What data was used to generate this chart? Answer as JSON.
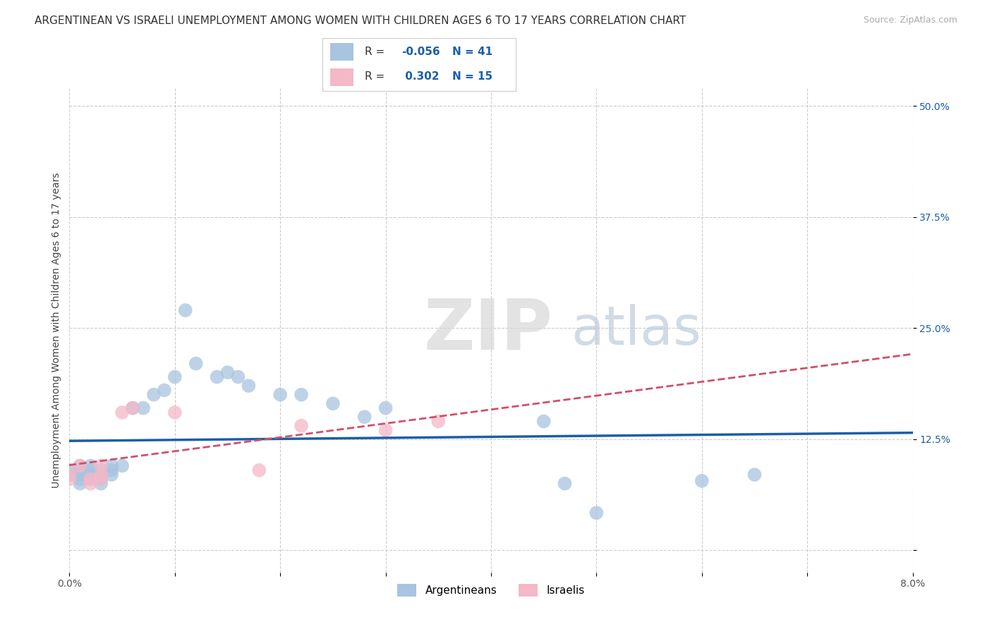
{
  "title": "ARGENTINEAN VS ISRAELI UNEMPLOYMENT AMONG WOMEN WITH CHILDREN AGES 6 TO 17 YEARS CORRELATION CHART",
  "source": "Source: ZipAtlas.com",
  "ylabel": "Unemployment Among Women with Children Ages 6 to 17 years",
  "xlim": [
    0.0,
    0.08
  ],
  "ylim": [
    -0.025,
    0.52
  ],
  "xtick_vals": [
    0.0,
    0.01,
    0.02,
    0.03,
    0.04,
    0.05,
    0.06,
    0.07,
    0.08
  ],
  "xticklabels": [
    "0.0%",
    "",
    "",
    "",
    "",
    "",
    "",
    "",
    "8.0%"
  ],
  "ytick_vals": [
    0.0,
    0.125,
    0.25,
    0.375,
    0.5
  ],
  "yticklabels": [
    "",
    "12.5%",
    "25.0%",
    "37.5%",
    "50.0%"
  ],
  "grid_color": "#cccccc",
  "bg_color": "#ffffff",
  "arg_color": "#a8c4e0",
  "arg_trend_color": "#1a5fa8",
  "isr_color": "#f4b8c8",
  "isr_trend_color": "#d0506a",
  "arg_R": -0.056,
  "arg_N": 41,
  "isr_R": 0.302,
  "isr_N": 15,
  "arg_x": [
    0.0,
    0.0,
    0.001,
    0.001,
    0.001,
    0.001,
    0.001,
    0.002,
    0.002,
    0.002,
    0.002,
    0.002,
    0.003,
    0.003,
    0.003,
    0.003,
    0.004,
    0.004,
    0.004,
    0.005,
    0.006,
    0.007,
    0.008,
    0.009,
    0.01,
    0.011,
    0.012,
    0.014,
    0.015,
    0.016,
    0.017,
    0.02,
    0.022,
    0.025,
    0.028,
    0.03,
    0.045,
    0.047,
    0.05,
    0.06,
    0.065
  ],
  "arg_y": [
    0.09,
    0.085,
    0.085,
    0.09,
    0.095,
    0.08,
    0.075,
    0.09,
    0.095,
    0.085,
    0.085,
    0.08,
    0.09,
    0.085,
    0.08,
    0.075,
    0.095,
    0.09,
    0.085,
    0.095,
    0.16,
    0.16,
    0.175,
    0.18,
    0.195,
    0.27,
    0.21,
    0.195,
    0.2,
    0.195,
    0.185,
    0.175,
    0.175,
    0.165,
    0.15,
    0.16,
    0.145,
    0.075,
    0.042,
    0.078,
    0.085
  ],
  "isr_x": [
    0.0,
    0.0,
    0.001,
    0.002,
    0.002,
    0.003,
    0.003,
    0.003,
    0.005,
    0.006,
    0.01,
    0.018,
    0.022,
    0.03,
    0.035
  ],
  "isr_y": [
    0.085,
    0.08,
    0.095,
    0.08,
    0.075,
    0.095,
    0.085,
    0.08,
    0.155,
    0.16,
    0.155,
    0.09,
    0.14,
    0.135,
    0.145
  ],
  "legend_arg_label": "Argentineans",
  "legend_isr_label": "Israelis",
  "title_fontsize": 11,
  "tick_fontsize": 10,
  "ylabel_fontsize": 10
}
